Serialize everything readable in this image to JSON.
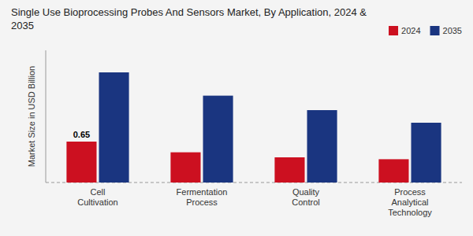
{
  "chart_data": {
    "type": "bar",
    "title": "Single Use Bioprocessing Probes And Sensors Market, By Application, 2024 &\n2035",
    "ylabel": "Market Size in USD Billion",
    "categories": [
      "Cell\nCultivation",
      "Fermentation\nProcess",
      "Quality\nControl",
      "Process\nAnalytical\nTechnology"
    ],
    "series": [
      {
        "name": "2024",
        "color": "#cc1020",
        "values": [
          0.65,
          0.48,
          0.4,
          0.37
        ]
      },
      {
        "name": "2035",
        "color": "#1a3580",
        "values": [
          1.75,
          1.38,
          1.15,
          0.95
        ]
      }
    ],
    "ylim": [
      0,
      2.1
    ],
    "tick_labels": "x",
    "grid": false,
    "legend": "upper right",
    "annotations": [
      {
        "text": "0.65",
        "x": "Cell\nCultivation",
        "y": 0.65
      }
    ]
  }
}
